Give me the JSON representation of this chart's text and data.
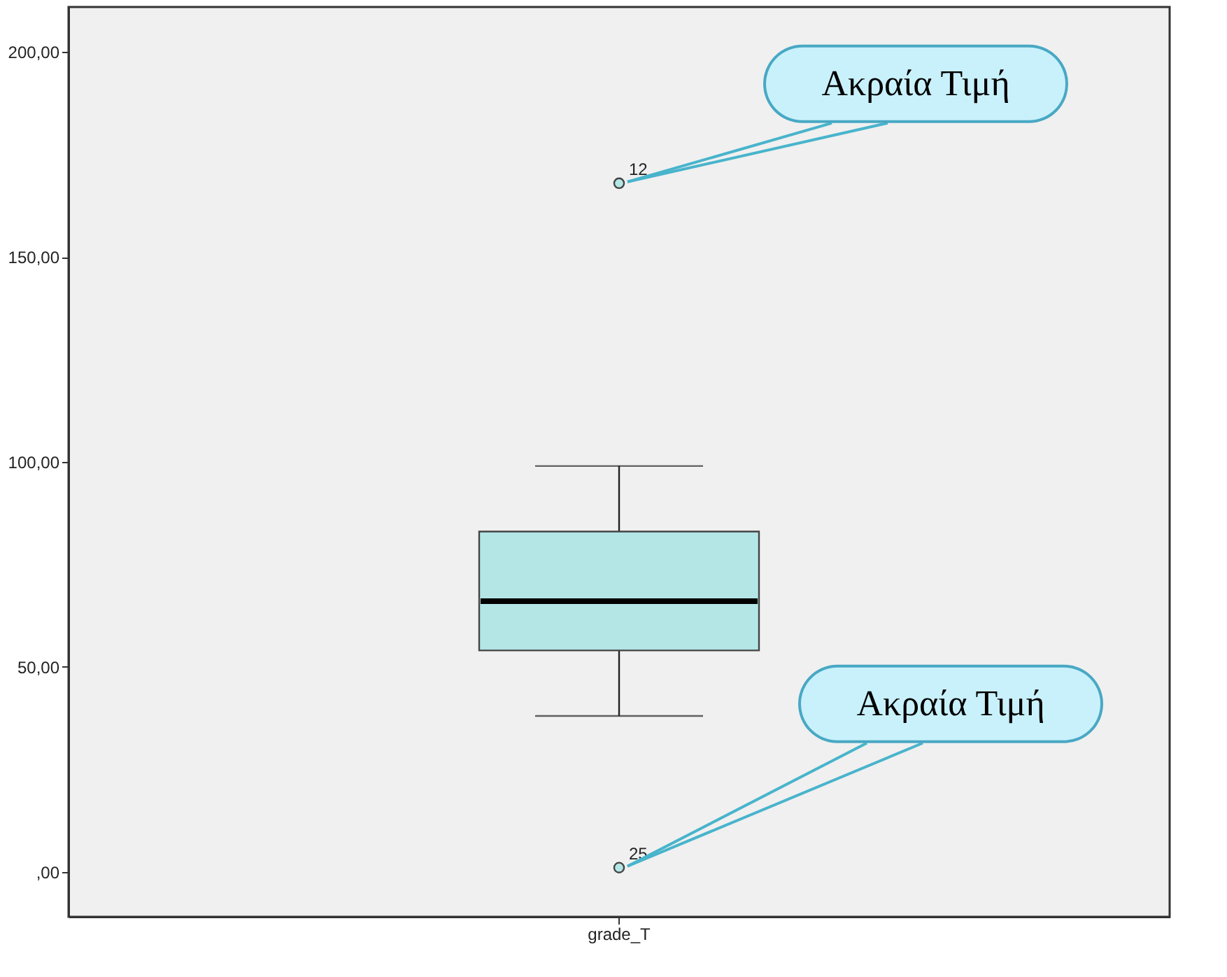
{
  "chart_data": {
    "type": "box",
    "categories": [
      "grade_T"
    ],
    "colors": [
      "#b4e6e6"
    ],
    "boxes": [
      {
        "low": 38,
        "q1": 54,
        "median": 66,
        "q3": 83,
        "high": 99,
        "outliers": [
          168,
          1
        ]
      }
    ],
    "ylim": [
      -11,
      211
    ],
    "yticks": [
      {
        "value": 0,
        "label": ",00"
      },
      {
        "value": 50,
        "label": "50,00"
      },
      {
        "value": 100,
        "label": "100,00"
      },
      {
        "value": 150,
        "label": "150,00"
      },
      {
        "value": 200,
        "label": "200,00"
      }
    ],
    "annotations": [
      "12",
      "25",
      "Ακραία Τιμή",
      "Ακραία Τιμή"
    ]
  }
}
